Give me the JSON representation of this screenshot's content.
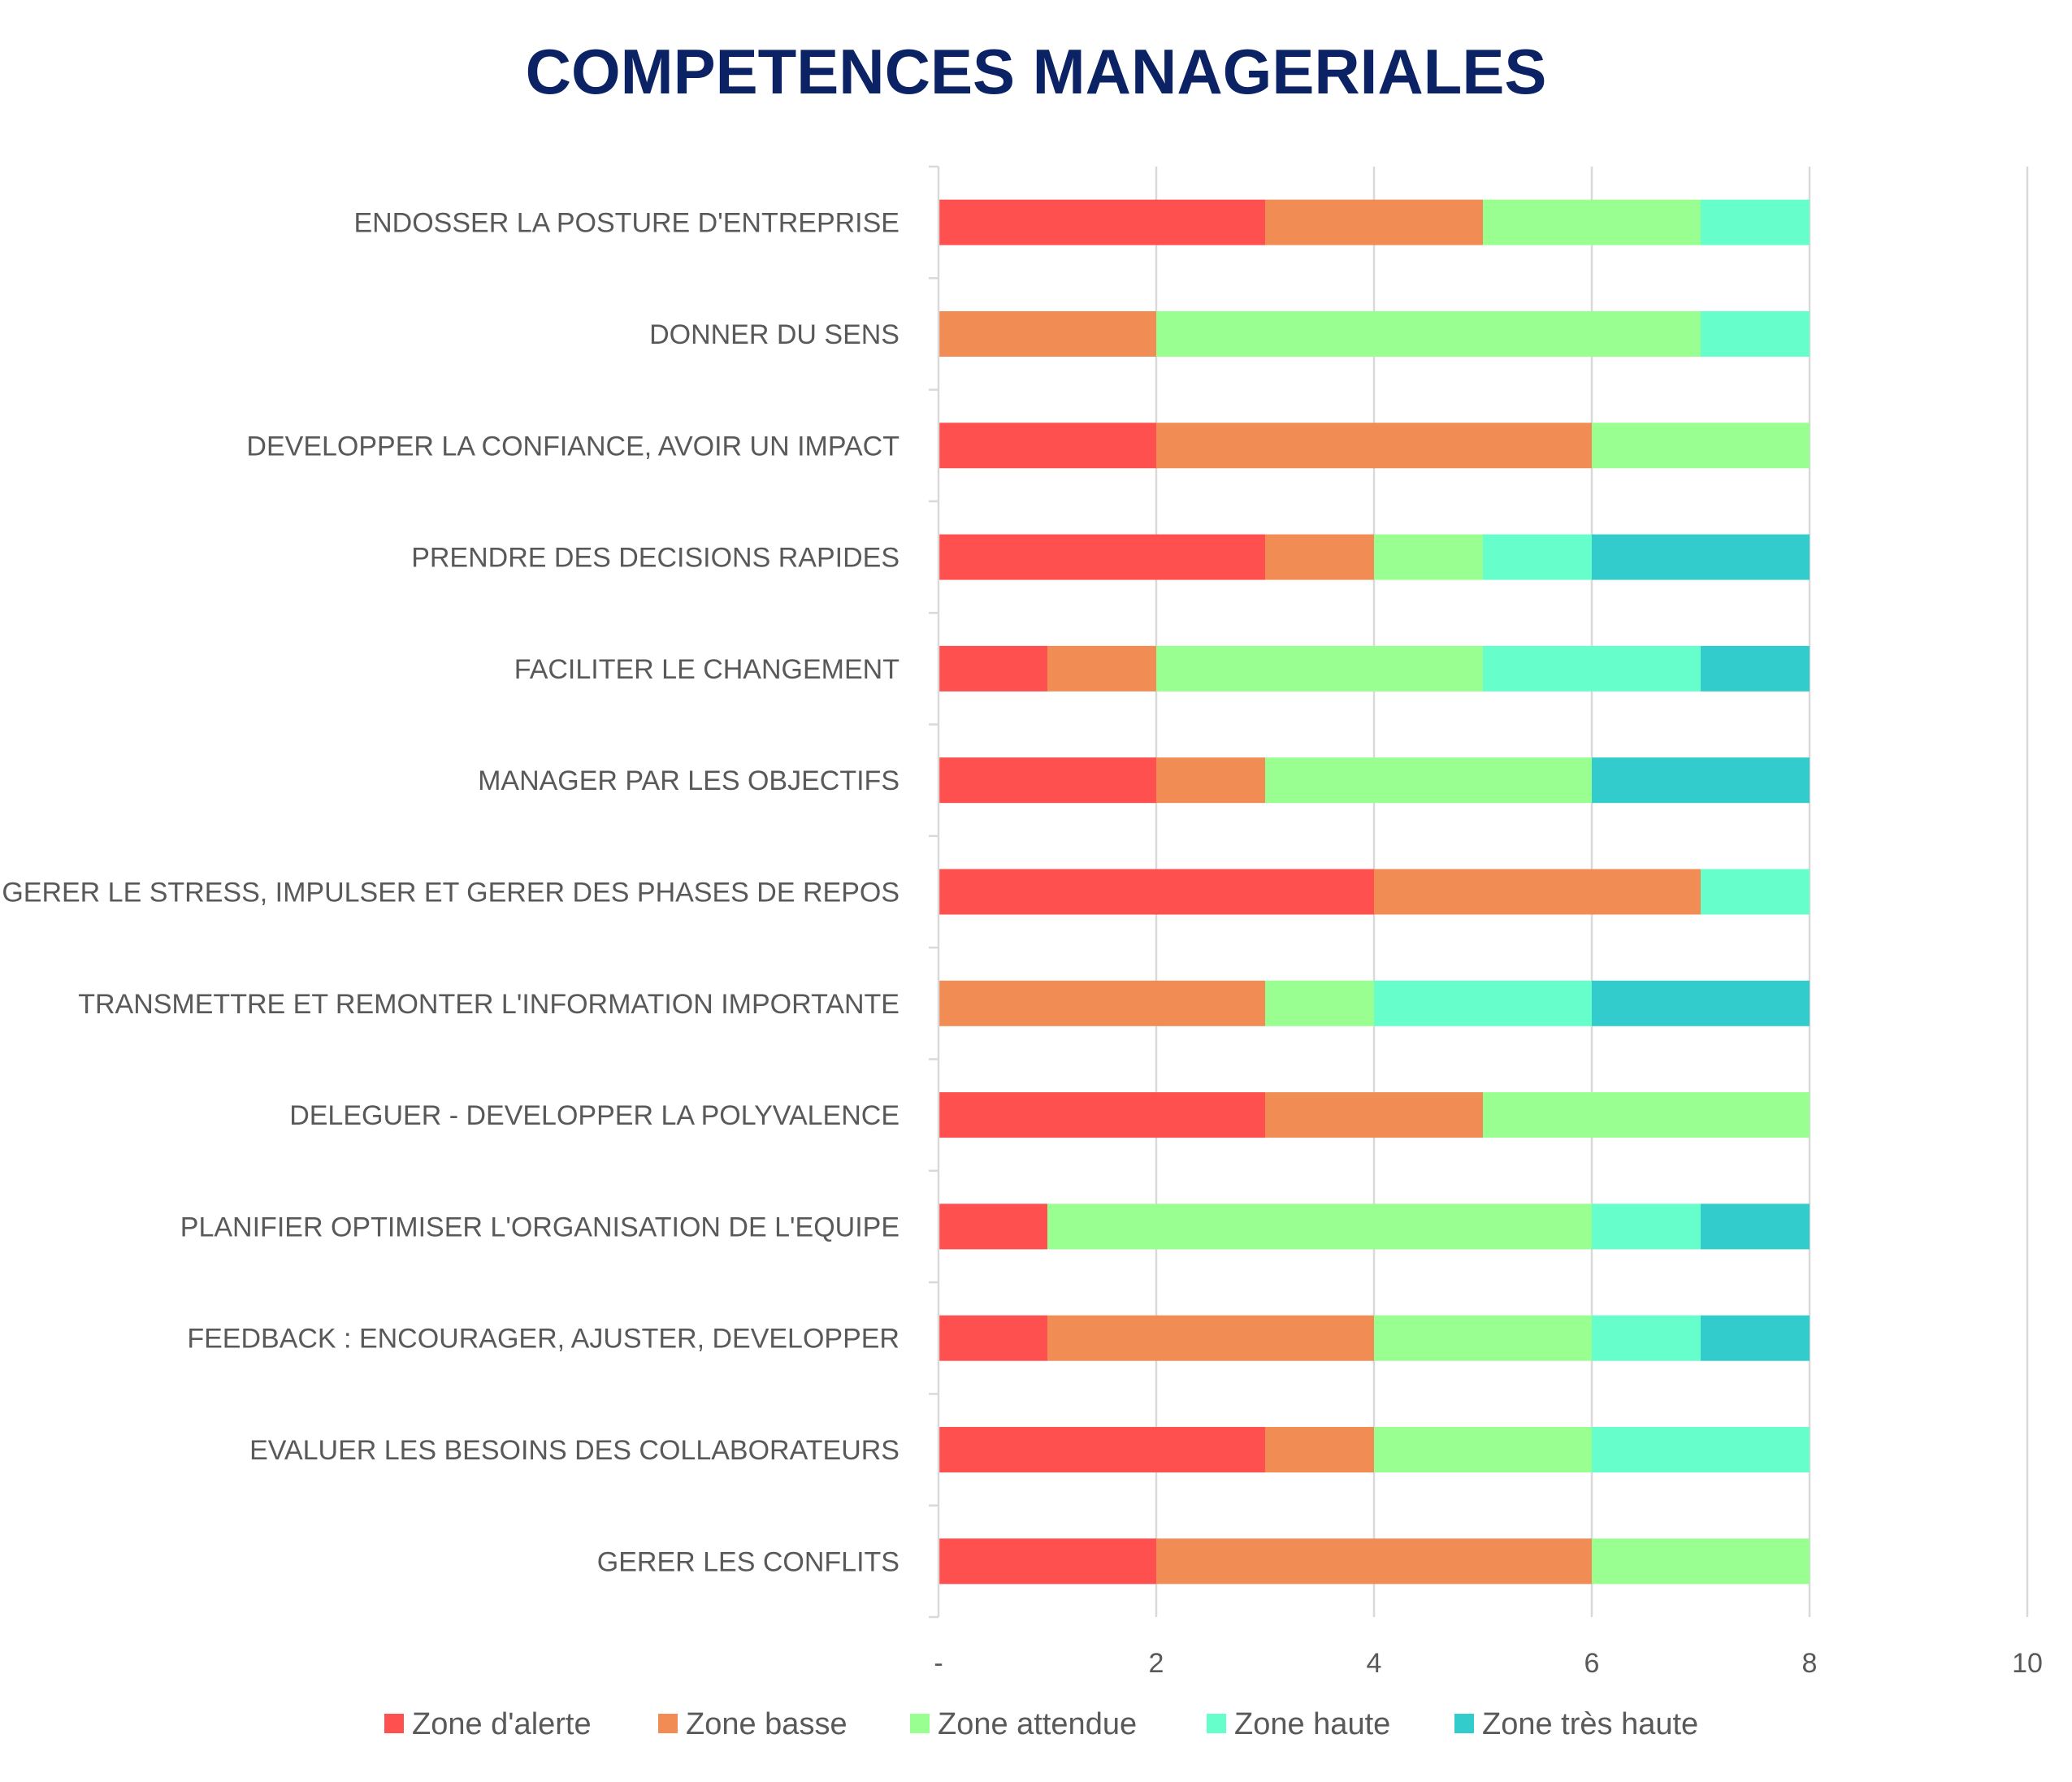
{
  "chart_data": {
    "type": "bar",
    "orientation": "horizontal",
    "stacked": true,
    "title": "COMPETENCES MANAGERIALES",
    "xlabel": "",
    "ylabel": "",
    "xlim": [
      0,
      10
    ],
    "x_ticks": [
      0,
      2,
      4,
      6,
      8,
      10
    ],
    "x_tick_labels": [
      "-",
      "2",
      "4",
      "6",
      "8",
      "10"
    ],
    "grid": true,
    "legend_position": "bottom",
    "categories": [
      "ENDOSSER LA POSTURE D'ENTREPRISE",
      "DONNER DU SENS",
      "DEVELOPPER LA CONFIANCE, AVOIR UN IMPACT",
      "PRENDRE DES DECISIONS RAPIDES",
      "FACILITER LE CHANGEMENT",
      "MANAGER PAR LES OBJECTIFS",
      "GERER LE STRESS, IMPULSER ET GERER DES PHASES DE REPOS",
      "TRANSMETTRE ET REMONTER L'INFORMATION IMPORTANTE",
      "DELEGUER - DEVELOPPER LA POLYVALENCE",
      "PLANIFIER OPTIMISER L'ORGANISATION DE L'EQUIPE",
      "FEEDBACK : ENCOURAGER, AJUSTER, DEVELOPPER",
      "EVALUER LES BESOINS DES COLLABORATEURS",
      "GERER LES CONFLITS"
    ],
    "series": [
      {
        "name": "Zone d'alerte",
        "color": "#FF5050",
        "values": [
          3,
          0,
          2,
          3,
          1,
          2,
          4,
          0,
          3,
          1,
          1,
          3,
          2
        ]
      },
      {
        "name": "Zone basse",
        "color": "#F28C55",
        "values": [
          2,
          2,
          4,
          1,
          1,
          1,
          3,
          3,
          2,
          0,
          3,
          1,
          4
        ]
      },
      {
        "name": "Zone attendue",
        "color": "#99FF90",
        "values": [
          2,
          5,
          2,
          1,
          3,
          3,
          0,
          1,
          3,
          5,
          2,
          2,
          2
        ]
      },
      {
        "name": "Zone haute",
        "color": "#66FFCC",
        "values": [
          1,
          1,
          0,
          1,
          2,
          0,
          1,
          2,
          0,
          1,
          1,
          2,
          0
        ]
      },
      {
        "name": "Zone très haute",
        "color": "#33CCCC",
        "values": [
          0,
          0,
          0,
          2,
          1,
          2,
          0,
          2,
          0,
          1,
          1,
          0,
          0
        ]
      }
    ]
  },
  "colors": {
    "title": "#0B2265",
    "label": "#595959",
    "grid": "#D9D9D9"
  }
}
